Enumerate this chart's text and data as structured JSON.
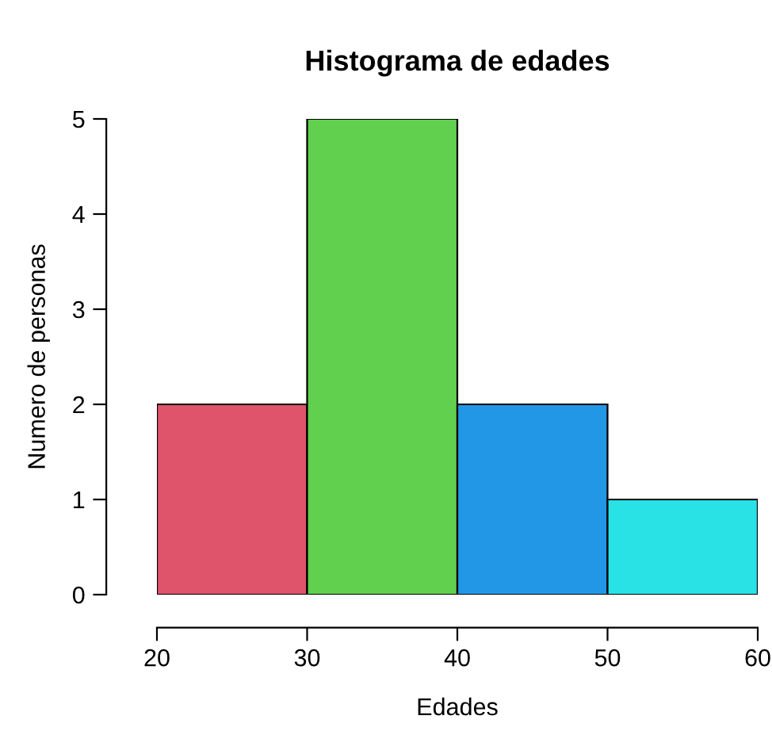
{
  "chart_data": {
    "type": "histogram",
    "title": "Histograma de edades",
    "xlabel": "Edades",
    "ylabel": "Numero de personas",
    "bins": [
      20,
      30,
      40,
      50,
      60
    ],
    "values": [
      2,
      5,
      2,
      1
    ],
    "colors": [
      "#df536b",
      "#61d04f",
      "#2297e6",
      "#28e2e5"
    ],
    "xlim": [
      20,
      60
    ],
    "ylim": [
      0,
      5
    ],
    "xticks": [
      20,
      30,
      40,
      50,
      60
    ],
    "yticks": [
      0,
      1,
      2,
      3,
      4,
      5
    ],
    "grid": false,
    "legend": false
  }
}
